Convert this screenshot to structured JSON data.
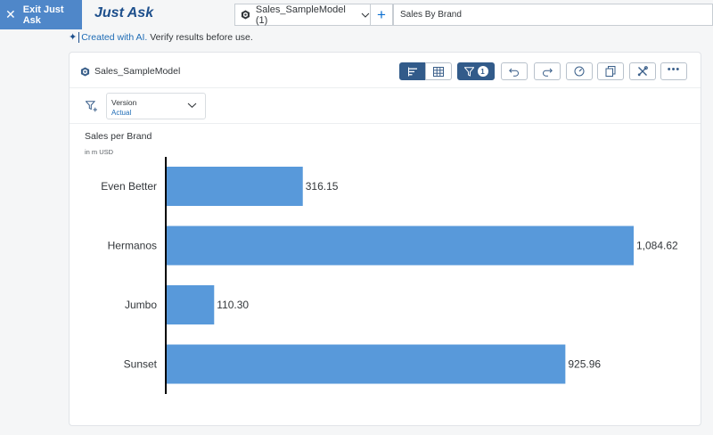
{
  "topbar": {
    "exit_label": "Exit Just Ask",
    "app_title": "Just Ask",
    "model_select_value": "Sales_SampleModel (1)",
    "query_value": "Sales By Brand"
  },
  "ai_note": {
    "link_text": "Created with AI.",
    "rest_text": " Verify results before use."
  },
  "card": {
    "model_name": "Sales_SampleModel",
    "filter_count": "1",
    "version_label": "Version",
    "version_value": "Actual",
    "chart_title": "Sales per Brand",
    "chart_unit": "in m USD"
  },
  "chart_data": {
    "type": "bar",
    "orientation": "horizontal",
    "title": "Sales per Brand",
    "subtitle": "in m USD",
    "categories": [
      "Even Better",
      "Hermanos",
      "Jumbo",
      "Sunset"
    ],
    "values": [
      316.15,
      1084.62,
      110.3,
      925.96
    ],
    "value_labels": [
      "316.15",
      "1,084.62",
      "110.30",
      "925.96"
    ],
    "bar_color": "#5899da",
    "grid": false
  },
  "colors": {
    "accent": "#4f87c9",
    "title_blue": "#1d4f8c",
    "toolbar_dark": "#325b8a"
  }
}
